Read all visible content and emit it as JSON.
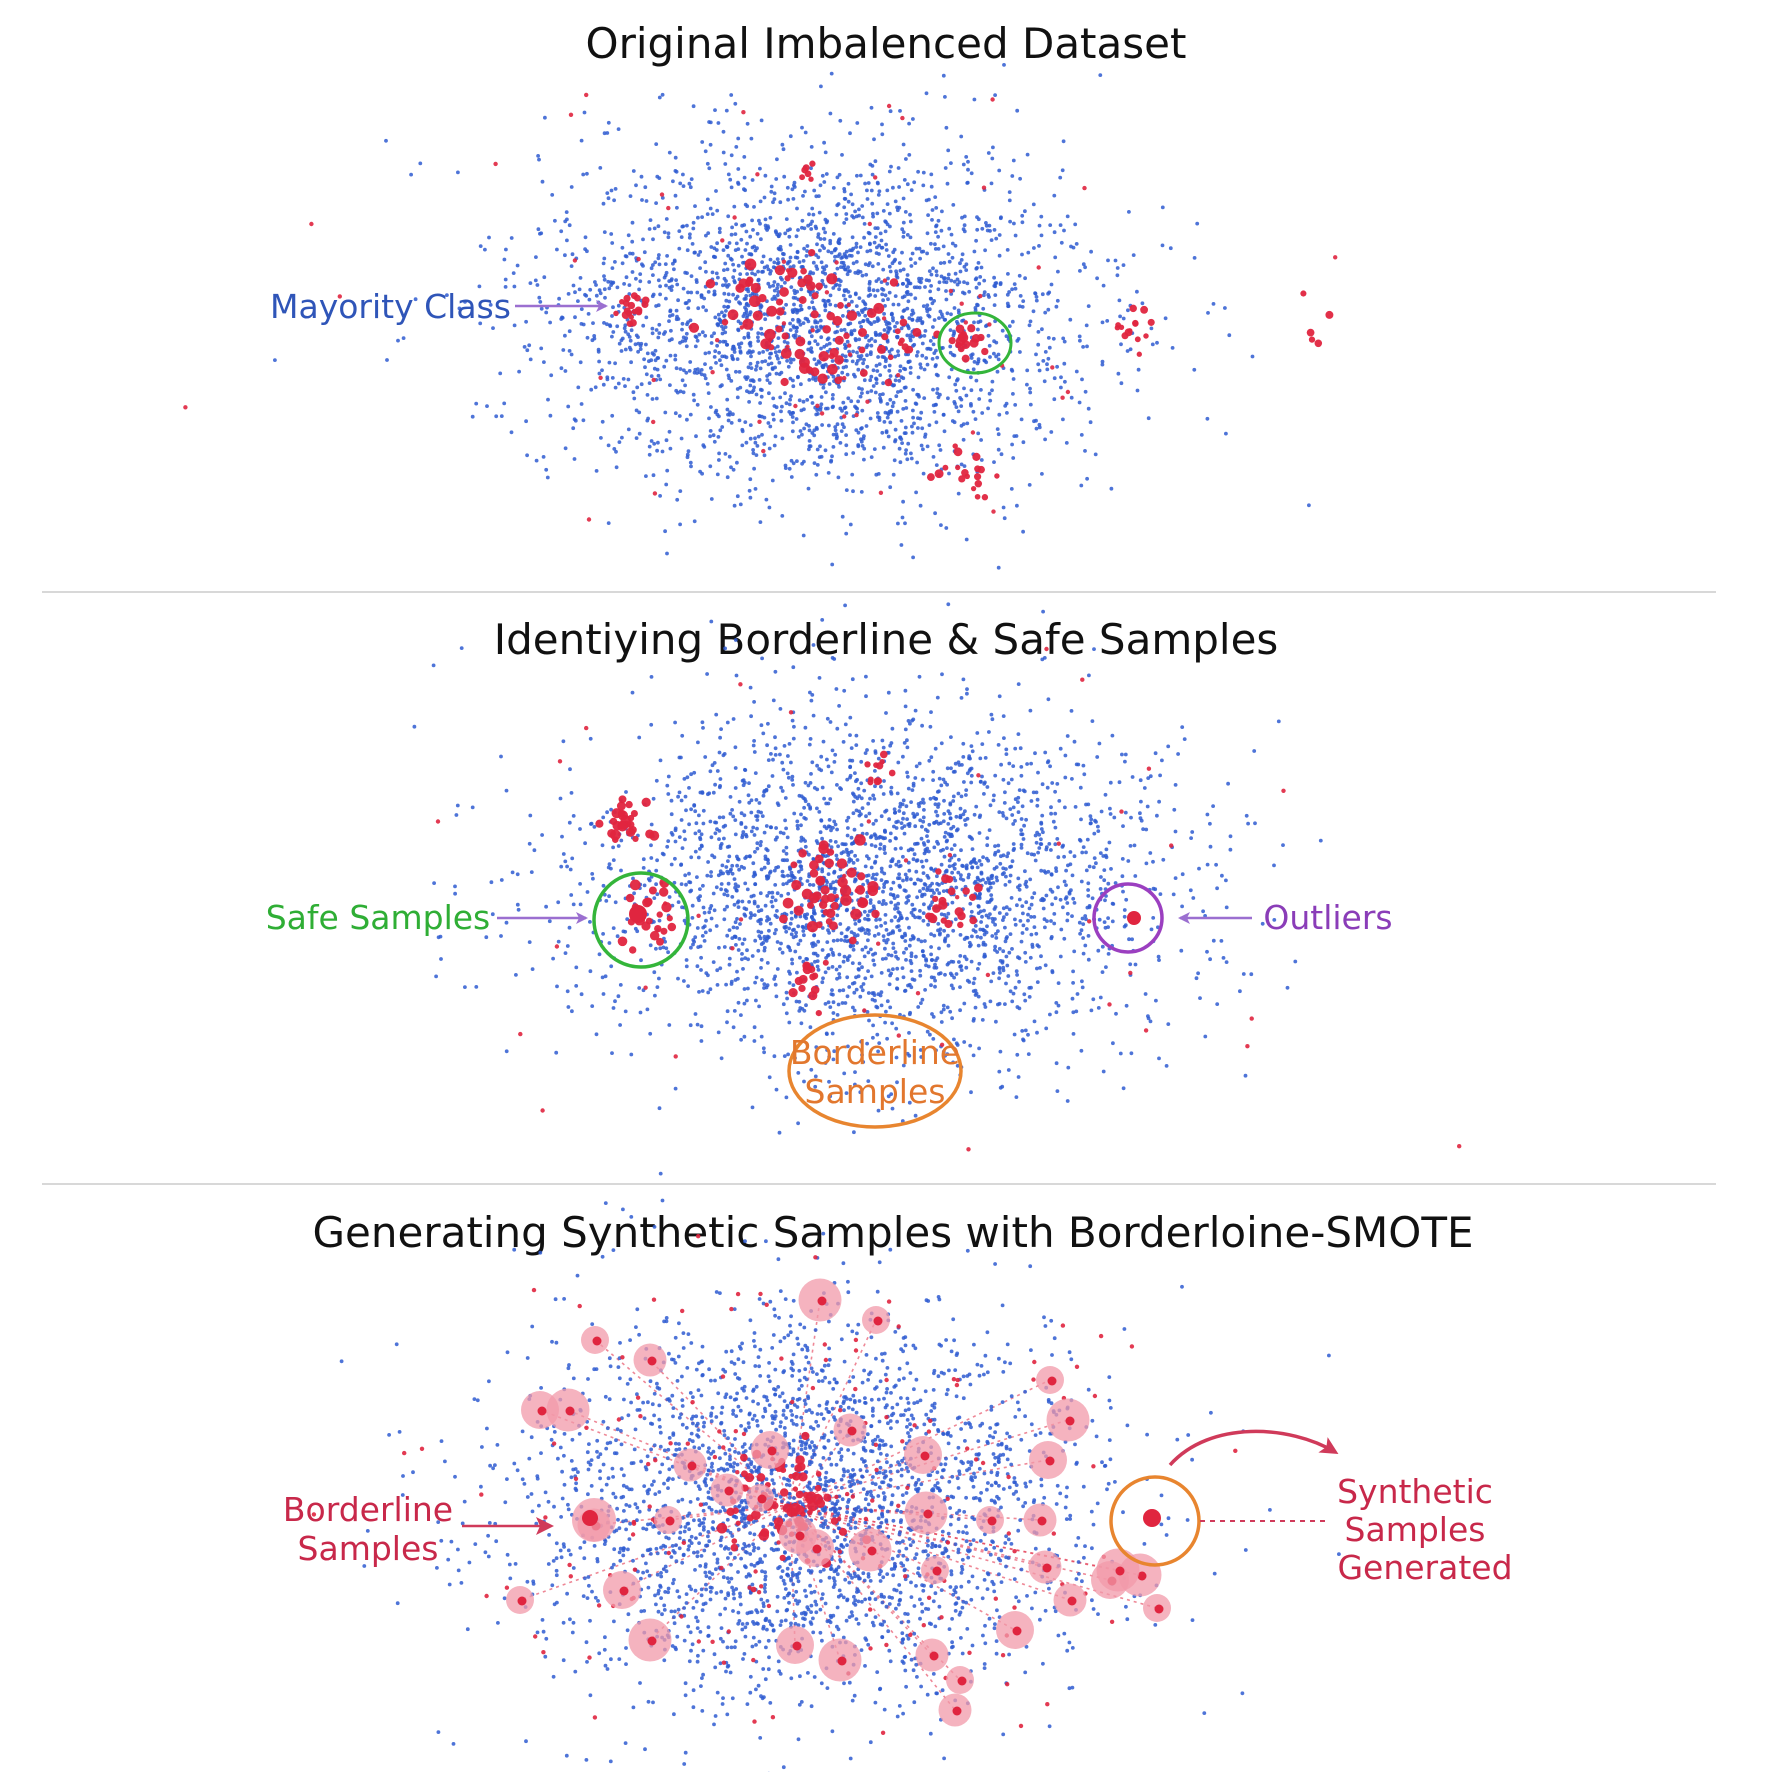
{
  "panels": [
    {
      "title": "Original Imbalenced Dataset",
      "annotations": [
        {
          "lines": [
            "Mayority Class"
          ],
          "color": "#2f55b8"
        }
      ]
    },
    {
      "title": "Identiying Borderline & Safe Samples",
      "annotations": [
        {
          "lines": [
            "Safe Samples"
          ],
          "color": "#2fae35"
        },
        {
          "lines": [
            "Outliers"
          ],
          "color": "#8a3db8"
        },
        {
          "lines": [
            "Borderline",
            "Samples"
          ],
          "color": "#e2772e"
        }
      ]
    },
    {
      "title": "Generating Synthetic Samples with Borderloine-SMOTE",
      "annotations": [
        {
          "lines": [
            "Borderline",
            "Samples"
          ],
          "color": "#c8284a"
        },
        {
          "lines": [
            "Synthetic",
            "Samples",
            "Generated"
          ],
          "color": "#c8284a"
        }
      ]
    }
  ],
  "colors": {
    "majority": "#2f5cd1",
    "minority": "#e0253f",
    "synthetic_halo": "#f29aaa",
    "circle_green": "#34b53a",
    "circle_purple": "#9b3fc0",
    "circle_orange": "#e8852f",
    "arrow_purple": "#9b6fd0",
    "arrow_red": "#d03a5a",
    "divider": "#d8d8d8"
  }
}
